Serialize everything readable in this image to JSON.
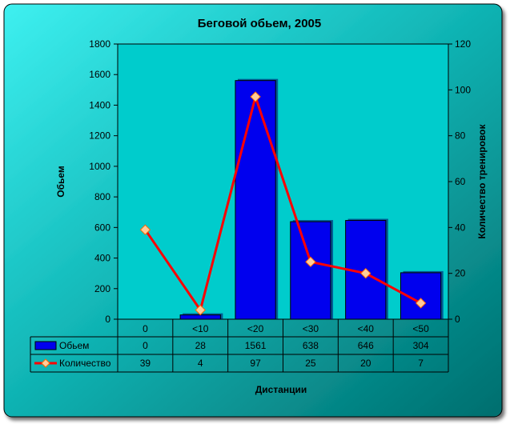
{
  "chart_data": {
    "type": "bar",
    "title": "Беговой обьем, 2005",
    "xlabel": "Дистанции",
    "ylabel": "Обьем",
    "y2label": "Количество тренировок",
    "categories": [
      "0",
      "<10",
      "<20",
      "<30",
      "<40",
      "<50"
    ],
    "ylim": [
      0,
      1800
    ],
    "yticks": [
      0,
      200,
      400,
      600,
      800,
      1000,
      1200,
      1400,
      1600,
      1800
    ],
    "y2lim": [
      0,
      120
    ],
    "y2ticks": [
      0,
      20,
      40,
      60,
      80,
      100,
      120
    ],
    "grid": false,
    "legend": "table-below",
    "series": [
      {
        "name": "Обьем",
        "type": "bar",
        "axis": "left",
        "values": [
          0,
          28,
          1561,
          638,
          646,
          304
        ],
        "color": "#0000ee"
      },
      {
        "name": "Количество",
        "type": "line",
        "axis": "right",
        "values": [
          39,
          4,
          97,
          25,
          20,
          7
        ],
        "color": "#ff0000",
        "marker_color": "#ffcc99"
      }
    ]
  },
  "colors": {
    "background_top": "#2ee0e0",
    "background_bottom": "#007878",
    "plot_area": "#00cccc",
    "frame": "#000000"
  }
}
